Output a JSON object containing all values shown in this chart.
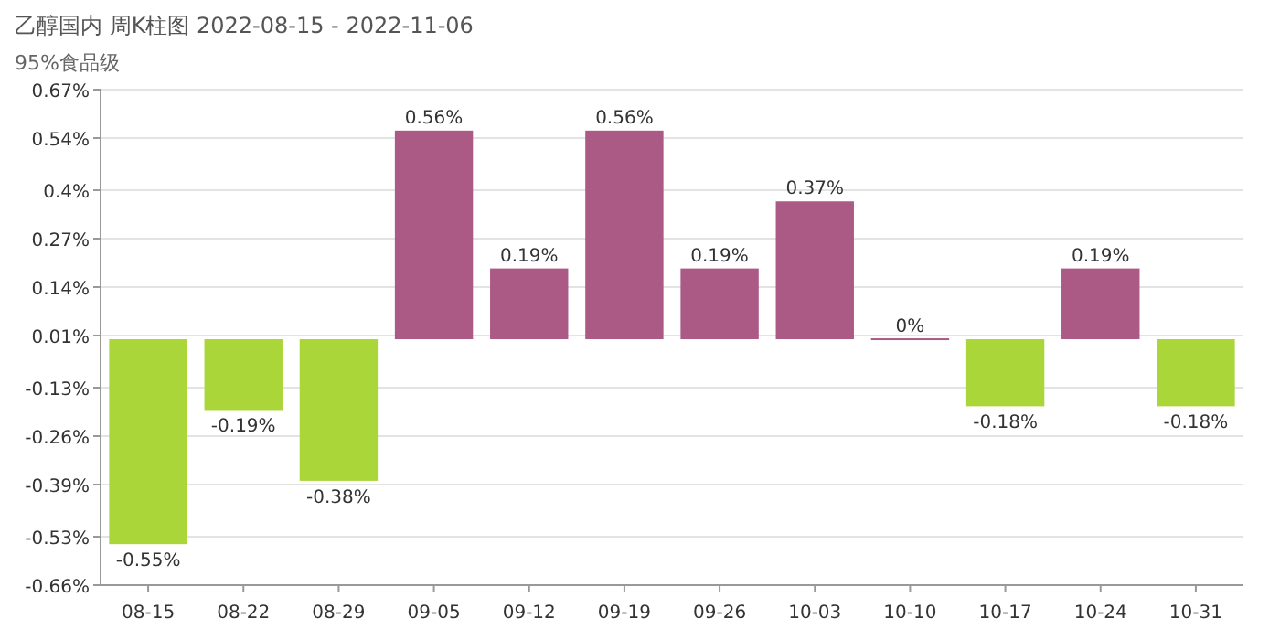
{
  "chart_data": {
    "type": "bar",
    "title": "乙醇国内 周K柱图 2022-08-15 - 2022-11-06",
    "subtitle": "95%食品级",
    "categories": [
      "08-15",
      "08-22",
      "08-29",
      "09-05",
      "09-12",
      "09-19",
      "09-26",
      "10-03",
      "10-10",
      "10-17",
      "10-24",
      "10-31"
    ],
    "values": [
      -0.55,
      -0.19,
      -0.38,
      0.56,
      0.19,
      0.56,
      0.19,
      0.37,
      0,
      -0.18,
      0.19,
      -0.18
    ],
    "value_labels": [
      "-0.55%",
      "-0.19%",
      "-0.38%",
      "0.56%",
      "0.19%",
      "0.56%",
      "0.19%",
      "0.37%",
      "0%",
      "-0.18%",
      "0.19%",
      "-0.18%"
    ],
    "colors": [
      "#aad63a",
      "#aad63a",
      "#aad63a",
      "#ab5a85",
      "#ab5a85",
      "#ab5a85",
      "#ab5a85",
      "#ab5a85",
      "#ab5a85",
      "#aad63a",
      "#ab5a85",
      "#aad63a"
    ],
    "ylim": [
      -0.66,
      0.67
    ],
    "yticks": [
      {
        "value": 0.67,
        "label": "0.67%"
      },
      {
        "value": 0.54,
        "label": "0.54%"
      },
      {
        "value": 0.4,
        "label": "0.4%"
      },
      {
        "value": 0.27,
        "label": "0.27%"
      },
      {
        "value": 0.14,
        "label": "0.14%"
      },
      {
        "value": 0.01,
        "label": "0.01%"
      },
      {
        "value": -0.13,
        "label": "-0.13%"
      },
      {
        "value": -0.26,
        "label": "-0.26%"
      },
      {
        "value": -0.39,
        "label": "-0.39%"
      },
      {
        "value": -0.53,
        "label": "-0.53%"
      },
      {
        "value": -0.66,
        "label": "-0.66%"
      }
    ],
    "grid": "y"
  }
}
